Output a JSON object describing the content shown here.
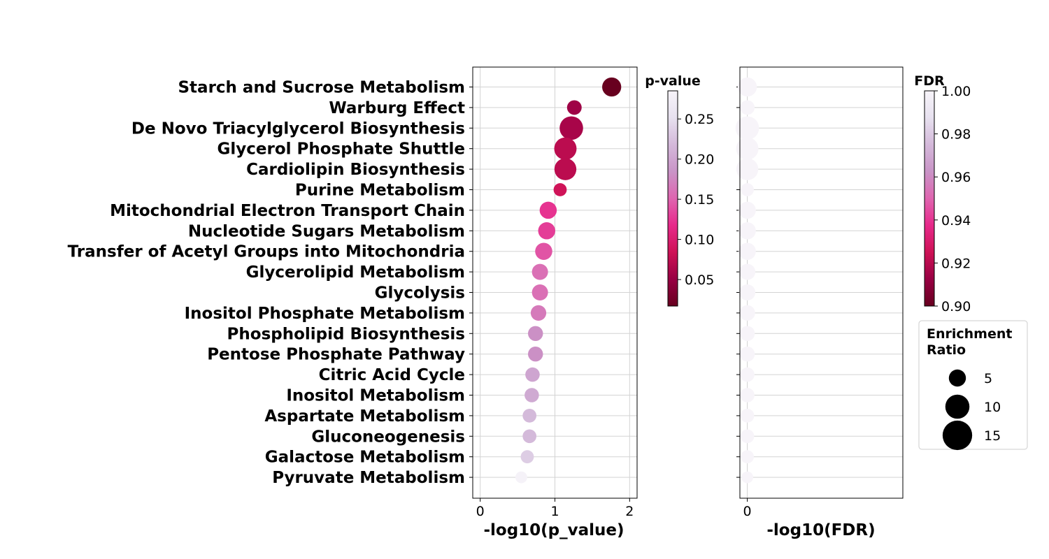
{
  "chart_data": {
    "type": "scatter",
    "categories": [
      "Starch and Sucrose Metabolism",
      "Warburg Effect",
      "De Novo Triacylglycerol Biosynthesis",
      "Glycerol Phosphate Shuttle",
      "Cardiolipin Biosynthesis",
      "Purine Metabolism",
      "Mitochondrial Electron Transport Chain",
      "Nucleotide Sugars Metabolism",
      "Transfer of Acetyl Groups into Mitochondria",
      "Glycerolipid Metabolism",
      "Glycolysis",
      "Inositol Phosphate Metabolism",
      "Phospholipid Biosynthesis",
      "Pentose Phosphate Pathway",
      "Citric Acid Cycle",
      "Inositol Metabolism",
      "Aspartate Metabolism",
      "Gluconeogenesis",
      "Galactose Metabolism",
      "Pyruvate Metabolism"
    ],
    "left_panel": {
      "xlabel": "-log10(p_value)",
      "xlim": [
        -0.1,
        2.1
      ],
      "xticks": [
        "0",
        "1",
        "2"
      ],
      "grid": true,
      "neg_log10_p": [
        1.76,
        1.26,
        1.22,
        1.14,
        1.14,
        1.07,
        0.91,
        0.89,
        0.85,
        0.8,
        0.8,
        0.78,
        0.74,
        0.74,
        0.7,
        0.69,
        0.66,
        0.66,
        0.63,
        0.55
      ],
      "enrichment_ratio": [
        10.5,
        6.2,
        16.0,
        14.5,
        14.0,
        5.0,
        8.5,
        8.5,
        8.5,
        7.5,
        7.5,
        7.0,
        6.5,
        6.5,
        6.0,
        6.0,
        5.5,
        5.5,
        5.0,
        4.0
      ]
    },
    "right_panel": {
      "xlabel": "-log10(FDR)",
      "xlim": [
        -0.1,
        2.1
      ],
      "xticks": [
        "0"
      ],
      "grid": true,
      "neg_log10_fdr": [
        0,
        0,
        0,
        0,
        0,
        0,
        0,
        0,
        0,
        0,
        0,
        0,
        0,
        0,
        0,
        0,
        0,
        0,
        0,
        0
      ]
    },
    "colorbar_p": {
      "title": "p-value",
      "range": [
        0.017,
        0.285
      ],
      "ticks": [
        "0.05",
        "0.10",
        "0.15",
        "0.20",
        "0.25"
      ],
      "tick_values": [
        0.05,
        0.1,
        0.15,
        0.2,
        0.25
      ]
    },
    "colorbar_fdr": {
      "title": "FDR",
      "range": [
        0.9,
        1.0
      ],
      "ticks": [
        "0.90",
        "0.92",
        "0.94",
        "0.96",
        "0.98",
        "1.00"
      ],
      "tick_values": [
        0.9,
        0.92,
        0.94,
        0.96,
        0.98,
        1.0
      ]
    },
    "size_legend": {
      "title_line1": "Enrichment",
      "title_line2": "Ratio",
      "labels": [
        "5",
        "10",
        "15"
      ],
      "values": [
        5,
        10,
        15
      ]
    },
    "colormap": [
      "#67001f",
      "#980043",
      "#ce1256",
      "#e7298a",
      "#df65b0",
      "#c994c7",
      "#d4b9da",
      "#e7e1ef",
      "#f7f4f9"
    ]
  }
}
